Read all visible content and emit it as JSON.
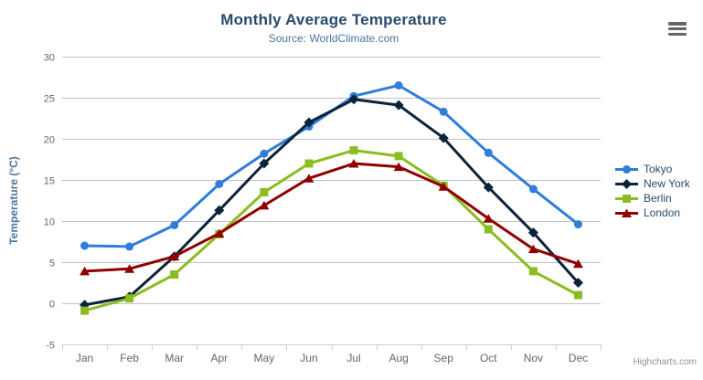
{
  "header": {
    "title": "Monthly Average Temperature",
    "subtitle": "Source: WorldClimate.com",
    "title_color": "#274b6d",
    "subtitle_color": "#4d759e"
  },
  "toolbar": {
    "export_menu_icon": "hamburger-icon"
  },
  "chart_data": {
    "type": "line",
    "title": "Monthly Average Temperature",
    "subtitle": "Source: WorldClimate.com",
    "categories": [
      "Jan",
      "Feb",
      "Mar",
      "Apr",
      "May",
      "Jun",
      "Jul",
      "Aug",
      "Sep",
      "Oct",
      "Nov",
      "Dec"
    ],
    "series": [
      {
        "name": "Tokyo",
        "color": "#2f7ed8",
        "marker": "circle",
        "values": [
          7.0,
          6.9,
          9.5,
          14.5,
          18.2,
          21.5,
          25.2,
          26.5,
          23.3,
          18.3,
          13.9,
          9.6
        ]
      },
      {
        "name": "New York",
        "color": "#0d233a",
        "marker": "diamond",
        "values": [
          -0.2,
          0.8,
          5.7,
          11.3,
          17.0,
          22.0,
          24.8,
          24.1,
          20.1,
          14.1,
          8.6,
          2.5
        ]
      },
      {
        "name": "Berlin",
        "color": "#8bbc21",
        "marker": "square",
        "values": [
          -0.9,
          0.6,
          3.5,
          8.4,
          13.5,
          17.0,
          18.6,
          17.9,
          14.3,
          9.0,
          3.9,
          1.0
        ]
      },
      {
        "name": "London",
        "color": "#910000",
        "marker": "triangle",
        "values": [
          3.9,
          4.2,
          5.7,
          8.5,
          11.9,
          15.2,
          17.0,
          16.6,
          14.2,
          10.3,
          6.6,
          4.8
        ]
      }
    ],
    "xlabel": "",
    "ylabel": "Temperature (°C)",
    "ylim": [
      -5,
      30
    ],
    "yticks": [
      -5,
      0,
      5,
      10,
      15,
      20,
      25,
      30
    ],
    "grid": true,
    "legend_position": "right",
    "axis_label_color": "#666666",
    "ylabel_color": "#4d759e",
    "grid_color": "#c0c0c0",
    "axis_line_color": "#c0d0e0",
    "legend_text_color": "#274b6d"
  },
  "credits": {
    "label": "Highcharts.com",
    "color": "#909090"
  }
}
